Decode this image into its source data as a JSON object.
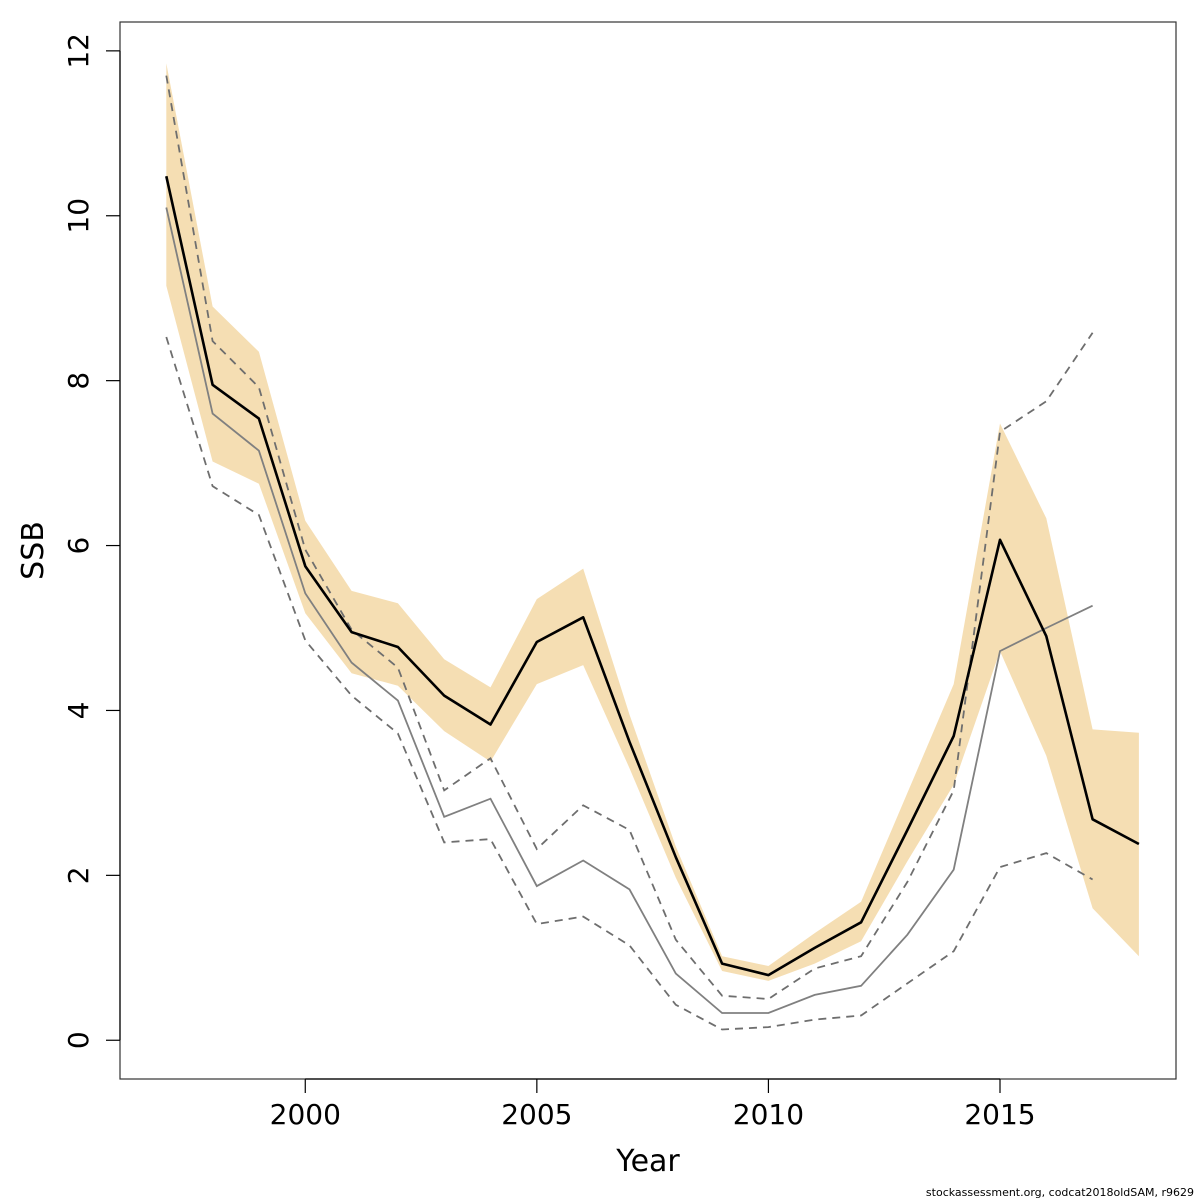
{
  "chart_data": {
    "type": "line",
    "title": "",
    "xlabel": "Year",
    "ylabel": "SSB",
    "xlim": [
      1996.0,
      2018.8
    ],
    "ylim": [
      -0.47,
      12.35
    ],
    "x_ticks": [
      2000,
      2005,
      2010,
      2015
    ],
    "y_ticks": [
      0,
      2,
      4,
      6,
      8,
      10,
      12
    ],
    "grid": false,
    "legend": "none",
    "colors": {
      "band": "#f5deb3",
      "estimate": "#000000",
      "comparison": "#808080"
    },
    "band": {
      "x": [
        1997,
        1998,
        1999,
        2000,
        2001,
        2002,
        2003,
        2004,
        2005,
        2006,
        2007,
        2008,
        2009,
        2010,
        2011,
        2012,
        2013,
        2014,
        2015,
        2016,
        2017,
        2018
      ],
      "upper": [
        11.85,
        8.9,
        8.35,
        6.3,
        5.45,
        5.3,
        4.62,
        4.28,
        5.35,
        5.72,
        3.95,
        2.35,
        1.02,
        0.9,
        1.3,
        1.68,
        3.0,
        4.32,
        7.48,
        6.33,
        3.77,
        3.73
      ],
      "lower": [
        9.15,
        7.02,
        6.75,
        5.18,
        4.45,
        4.3,
        3.75,
        3.38,
        4.32,
        4.55,
        3.3,
        1.97,
        0.84,
        0.72,
        0.93,
        1.2,
        2.17,
        3.1,
        4.72,
        3.45,
        1.6,
        1.02
      ]
    },
    "series": [
      {
        "role": "estimate",
        "x": [
          1997,
          1998,
          1999,
          2000,
          2001,
          2002,
          2003,
          2004,
          2005,
          2006,
          2007,
          2008,
          2009,
          2010,
          2011,
          2012,
          2013,
          2014,
          2015,
          2016,
          2017,
          2018
        ],
        "values": [
          10.48,
          7.95,
          7.54,
          5.75,
          4.95,
          4.77,
          4.18,
          3.83,
          4.83,
          5.13,
          3.62,
          2.22,
          0.93,
          0.79,
          1.12,
          1.43,
          2.55,
          3.69,
          6.07,
          4.9,
          2.68,
          2.38
        ]
      },
      {
        "role": "comparison",
        "x": [
          1997,
          1998,
          1999,
          2000,
          2001,
          2002,
          2003,
          2004,
          2005,
          2006,
          2007,
          2008,
          2009,
          2010,
          2011,
          2012,
          2013,
          2014,
          2015,
          2016,
          2017
        ],
        "values": [
          10.1,
          7.6,
          7.15,
          5.42,
          4.58,
          4.12,
          2.71,
          2.93,
          1.87,
          2.18,
          1.83,
          0.81,
          0.33,
          0.33,
          0.55,
          0.66,
          1.28,
          2.07,
          4.72,
          5.0,
          5.27
        ],
        "upper": [
          11.7,
          8.48,
          7.92,
          5.95,
          4.98,
          4.52,
          3.03,
          3.42,
          2.32,
          2.85,
          2.55,
          1.22,
          0.54,
          0.5,
          0.87,
          1.02,
          1.92,
          3.03,
          7.38,
          7.75,
          8.58
        ],
        "lower": [
          8.53,
          6.72,
          6.37,
          4.85,
          4.18,
          3.72,
          2.4,
          2.44,
          1.41,
          1.5,
          1.15,
          0.43,
          0.13,
          0.16,
          0.25,
          0.3,
          0.69,
          1.08,
          2.1,
          2.27,
          1.95
        ]
      }
    ]
  },
  "footer": {
    "credit": "stockassessment.org, codcat2018oldSAM, r9629"
  }
}
